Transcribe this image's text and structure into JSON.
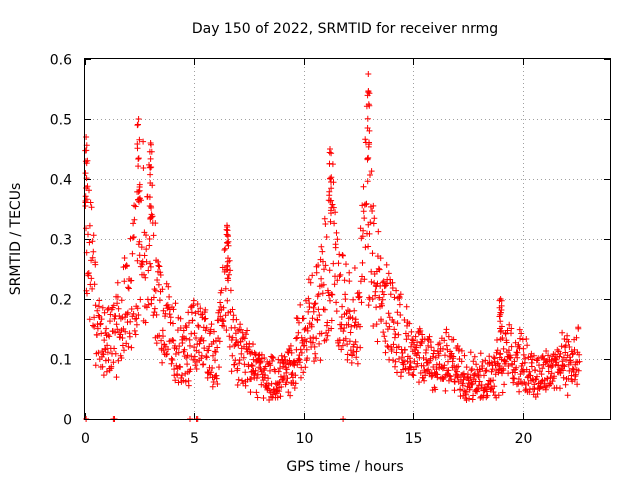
{
  "colors": {
    "series": "#ff0000",
    "grid": "#a0a0a0",
    "frame": "#000000"
  },
  "chart_data": {
    "type": "scatter",
    "marker": "plus",
    "title": "Day 150 of 2022, SRMTID for receiver nrmg",
    "xlabel": "GPS time / hours",
    "ylabel": "SRMTID / TECUs",
    "xlim": [
      0,
      24
    ],
    "ylim": [
      0,
      0.6
    ],
    "xticks": [
      0,
      5,
      10,
      15,
      20
    ],
    "xtick_labels": [
      "0",
      "5",
      "10",
      "15",
      "20"
    ],
    "yticks": [
      0,
      0.1,
      0.2,
      0.3,
      0.4,
      0.5,
      0.6
    ],
    "ytick_labels": [
      "0",
      "0.1",
      "0.2",
      "0.3",
      "0.4",
      "0.5",
      "0.6"
    ],
    "grid": true,
    "x_range": [
      0.05,
      22.6
    ],
    "zero_value_times": [
      0.05,
      1.3,
      1.35,
      4.8,
      5.1,
      5.15,
      11.8
    ],
    "envelope": {
      "x": [
        0.0,
        0.1,
        0.3,
        0.6,
        1.0,
        1.5,
        2.0,
        2.3,
        2.6,
        2.8,
        3.0,
        3.2,
        3.5,
        4.0,
        4.5,
        5.0,
        5.5,
        6.0,
        6.5,
        6.8,
        7.0,
        7.5,
        8.0,
        8.5,
        9.0,
        9.5,
        10.0,
        10.5,
        11.0,
        11.3,
        11.6,
        12.0,
        12.5,
        12.9,
        13.2,
        13.5,
        14.0,
        14.5,
        15.0,
        15.5,
        16.0,
        16.5,
        17.0,
        17.5,
        18.0,
        18.5,
        19.0,
        19.5,
        20.0,
        20.5,
        21.0,
        21.5,
        22.0,
        22.6
      ],
      "y": [
        0.18,
        0.46,
        0.3,
        0.17,
        0.14,
        0.18,
        0.24,
        0.3,
        0.42,
        0.28,
        0.42,
        0.3,
        0.2,
        0.17,
        0.13,
        0.17,
        0.16,
        0.12,
        0.28,
        0.14,
        0.14,
        0.11,
        0.09,
        0.08,
        0.09,
        0.11,
        0.18,
        0.2,
        0.28,
        0.36,
        0.24,
        0.22,
        0.2,
        0.46,
        0.3,
        0.24,
        0.2,
        0.17,
        0.12,
        0.12,
        0.11,
        0.12,
        0.1,
        0.09,
        0.08,
        0.09,
        0.12,
        0.13,
        0.11,
        0.09,
        0.09,
        0.11,
        0.11,
        0.13
      ]
    },
    "peaks": [
      {
        "x": 0.05,
        "y": 0.47
      },
      {
        "x": 2.45,
        "y": 0.5
      },
      {
        "x": 3.0,
        "y": 0.46
      },
      {
        "x": 6.5,
        "y": 0.32
      },
      {
        "x": 11.2,
        "y": 0.45
      },
      {
        "x": 12.95,
        "y": 0.575
      },
      {
        "x": 19.0,
        "y": 0.2
      }
    ]
  }
}
